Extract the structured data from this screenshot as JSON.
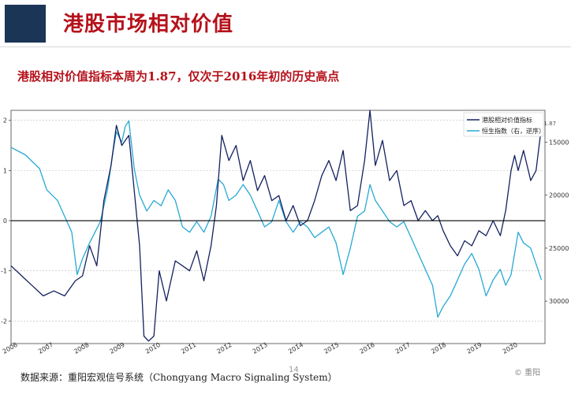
{
  "slide": {
    "title": "港股市场相对价值",
    "subtitle": "港股相对价值指标本周为1.87，仅次于2016年初的历史高点",
    "source": "数据来源：重阳宏观信号系统（Chongyang Macro Signaling System）",
    "page_number": "14",
    "watermark": "© 重阳"
  },
  "colors": {
    "brand_red": "#b5121b",
    "logo_navy": "#1b3557",
    "series_navy": "#14215e",
    "series_cyan": "#27a9d4"
  },
  "chart_data": {
    "type": "line",
    "title": "",
    "x_ticks": [
      "2006",
      "2007",
      "2008",
      "2009",
      "2010",
      "2011",
      "2012",
      "2013",
      "2014",
      "2015",
      "2016",
      "2017",
      "2018",
      "2019",
      "2020"
    ],
    "y_left": {
      "ticks": [
        "-2",
        "-1",
        "0",
        "1",
        "2"
      ],
      "range": [
        -2.45,
        2.2
      ]
    },
    "y_right": {
      "ticks": [
        "15000",
        "20000",
        "25000",
        "30000"
      ],
      "range": [
        12000,
        34000
      ],
      "inverted": true
    },
    "grid": true,
    "legend_position": "top-right",
    "end_annotation": "1.87",
    "series": [
      {
        "name": "港股相对价值指标",
        "axis": "left",
        "color": "#14215e",
        "points": [
          [
            2006.0,
            -0.9
          ],
          [
            2006.3,
            -1.1
          ],
          [
            2006.6,
            -1.3
          ],
          [
            2006.9,
            -1.5
          ],
          [
            2007.2,
            -1.4
          ],
          [
            2007.5,
            -1.5
          ],
          [
            2007.8,
            -1.2
          ],
          [
            2008.0,
            -1.1
          ],
          [
            2008.2,
            -0.5
          ],
          [
            2008.4,
            -0.9
          ],
          [
            2008.6,
            0.4
          ],
          [
            2008.8,
            1.1
          ],
          [
            2008.95,
            1.9
          ],
          [
            2009.1,
            1.5
          ],
          [
            2009.3,
            1.7
          ],
          [
            2009.45,
            0.6
          ],
          [
            2009.6,
            -0.5
          ],
          [
            2009.72,
            -2.3
          ],
          [
            2009.85,
            -2.4
          ],
          [
            2010.0,
            -2.3
          ],
          [
            2010.15,
            -1.0
          ],
          [
            2010.35,
            -1.6
          ],
          [
            2010.6,
            -0.8
          ],
          [
            2010.8,
            -0.9
          ],
          [
            2011.0,
            -1.0
          ],
          [
            2011.2,
            -0.6
          ],
          [
            2011.4,
            -1.2
          ],
          [
            2011.6,
            -0.5
          ],
          [
            2011.75,
            0.3
          ],
          [
            2011.9,
            1.7
          ],
          [
            2012.1,
            1.2
          ],
          [
            2012.3,
            1.5
          ],
          [
            2012.5,
            0.8
          ],
          [
            2012.7,
            1.2
          ],
          [
            2012.9,
            0.6
          ],
          [
            2013.1,
            0.9
          ],
          [
            2013.3,
            0.4
          ],
          [
            2013.5,
            0.5
          ],
          [
            2013.7,
            0.0
          ],
          [
            2013.9,
            0.3
          ],
          [
            2014.1,
            -0.1
          ],
          [
            2014.3,
            0.0
          ],
          [
            2014.5,
            0.4
          ],
          [
            2014.7,
            0.9
          ],
          [
            2014.9,
            1.2
          ],
          [
            2015.1,
            0.8
          ],
          [
            2015.3,
            1.4
          ],
          [
            2015.5,
            0.2
          ],
          [
            2015.7,
            0.3
          ],
          [
            2015.9,
            1.2
          ],
          [
            2016.05,
            2.2
          ],
          [
            2016.2,
            1.1
          ],
          [
            2016.4,
            1.6
          ],
          [
            2016.6,
            0.8
          ],
          [
            2016.8,
            1.0
          ],
          [
            2017.0,
            0.3
          ],
          [
            2017.2,
            0.4
          ],
          [
            2017.4,
            0.0
          ],
          [
            2017.6,
            0.2
          ],
          [
            2017.8,
            0.0
          ],
          [
            2017.95,
            0.1
          ],
          [
            2018.1,
            -0.2
          ],
          [
            2018.3,
            -0.5
          ],
          [
            2018.5,
            -0.7
          ],
          [
            2018.7,
            -0.4
          ],
          [
            2018.9,
            -0.5
          ],
          [
            2019.1,
            -0.2
          ],
          [
            2019.3,
            -0.3
          ],
          [
            2019.5,
            0.0
          ],
          [
            2019.7,
            -0.3
          ],
          [
            2019.85,
            0.2
          ],
          [
            2020.0,
            1.0
          ],
          [
            2020.1,
            1.3
          ],
          [
            2020.2,
            1.0
          ],
          [
            2020.35,
            1.4
          ],
          [
            2020.55,
            0.8
          ],
          [
            2020.7,
            1.0
          ],
          [
            2020.85,
            1.87
          ]
        ]
      },
      {
        "name": "恒生指数（右，逆序）",
        "axis": "right",
        "color": "#27a9d4",
        "points": [
          [
            2006.0,
            15500
          ],
          [
            2006.4,
            16200
          ],
          [
            2006.8,
            17500
          ],
          [
            2007.0,
            19500
          ],
          [
            2007.3,
            20500
          ],
          [
            2007.5,
            22000
          ],
          [
            2007.7,
            23500
          ],
          [
            2007.85,
            27500
          ],
          [
            2008.0,
            26000
          ],
          [
            2008.2,
            24500
          ],
          [
            2008.5,
            22500
          ],
          [
            2008.7,
            19500
          ],
          [
            2008.85,
            16000
          ],
          [
            2008.95,
            14000
          ],
          [
            2009.1,
            15000
          ],
          [
            2009.2,
            13500
          ],
          [
            2009.3,
            13000
          ],
          [
            2009.45,
            17500
          ],
          [
            2009.6,
            20000
          ],
          [
            2009.8,
            21500
          ],
          [
            2010.0,
            20500
          ],
          [
            2010.2,
            21000
          ],
          [
            2010.4,
            19500
          ],
          [
            2010.6,
            20500
          ],
          [
            2010.8,
            23000
          ],
          [
            2011.0,
            23500
          ],
          [
            2011.2,
            22500
          ],
          [
            2011.4,
            23500
          ],
          [
            2011.6,
            22000
          ],
          [
            2011.8,
            18500
          ],
          [
            2011.95,
            19000
          ],
          [
            2012.1,
            20500
          ],
          [
            2012.3,
            20000
          ],
          [
            2012.5,
            19000
          ],
          [
            2012.7,
            20000
          ],
          [
            2012.9,
            21500
          ],
          [
            2013.1,
            23000
          ],
          [
            2013.3,
            22500
          ],
          [
            2013.5,
            20500
          ],
          [
            2013.7,
            22500
          ],
          [
            2013.9,
            23500
          ],
          [
            2014.1,
            22500
          ],
          [
            2014.3,
            23000
          ],
          [
            2014.5,
            24000
          ],
          [
            2014.7,
            23500
          ],
          [
            2014.9,
            23000
          ],
          [
            2015.1,
            24500
          ],
          [
            2015.3,
            27500
          ],
          [
            2015.5,
            25000
          ],
          [
            2015.7,
            22000
          ],
          [
            2015.9,
            21500
          ],
          [
            2016.05,
            19000
          ],
          [
            2016.2,
            20500
          ],
          [
            2016.4,
            21500
          ],
          [
            2016.6,
            22500
          ],
          [
            2016.8,
            23000
          ],
          [
            2017.0,
            22500
          ],
          [
            2017.2,
            24000
          ],
          [
            2017.4,
            25500
          ],
          [
            2017.6,
            27000
          ],
          [
            2017.8,
            28500
          ],
          [
            2017.95,
            31500
          ],
          [
            2018.1,
            30500
          ],
          [
            2018.3,
            29500
          ],
          [
            2018.5,
            28000
          ],
          [
            2018.7,
            26500
          ],
          [
            2018.9,
            25500
          ],
          [
            2019.1,
            27000
          ],
          [
            2019.3,
            29500
          ],
          [
            2019.5,
            28000
          ],
          [
            2019.7,
            27000
          ],
          [
            2019.85,
            28500
          ],
          [
            2020.0,
            27500
          ],
          [
            2020.2,
            23500
          ],
          [
            2020.35,
            24500
          ],
          [
            2020.55,
            25000
          ],
          [
            2020.7,
            26500
          ],
          [
            2020.85,
            28000
          ]
        ]
      }
    ]
  }
}
